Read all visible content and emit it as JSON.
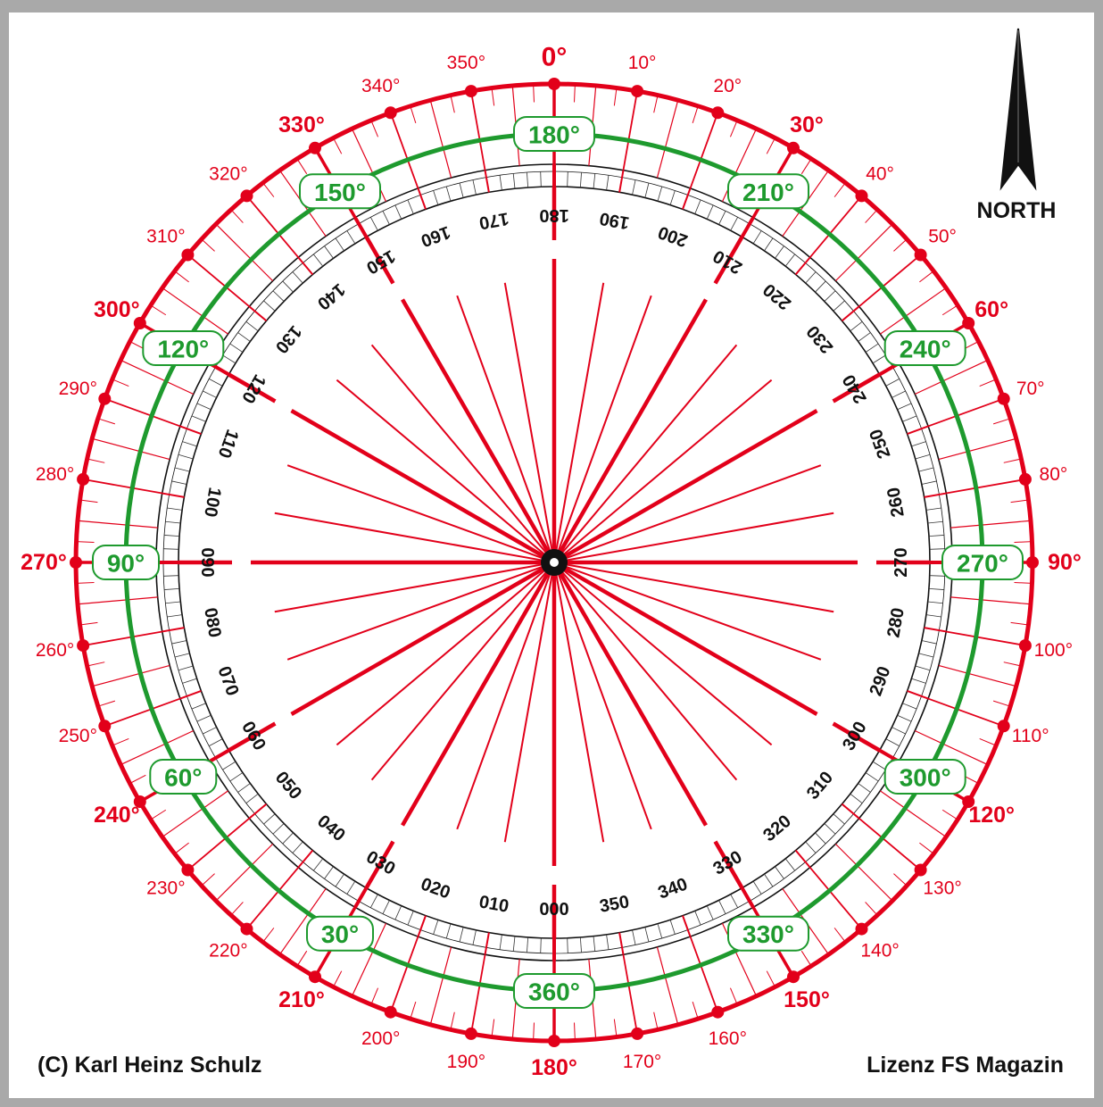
{
  "colors": {
    "red": "#e2001a",
    "green": "#1e9a2e",
    "black": "#111111",
    "frame": "#a9a9a9"
  },
  "north": {
    "label": "NORTH",
    "icon": "north-arrow-icon"
  },
  "footer": {
    "copyright": "(C) Karl Heinz Schulz",
    "license": "Lizenz FS Magazin"
  },
  "outer_ring": {
    "major_labels": [
      "0°",
      "30°",
      "60°",
      "90°",
      "120°",
      "150°",
      "180°",
      "210°",
      "240°",
      "270°",
      "300°",
      "330°"
    ],
    "minor_labels": [
      "10°",
      "20°",
      "40°",
      "50°",
      "70°",
      "80°",
      "100°",
      "110°",
      "130°",
      "140°",
      "160°",
      "170°",
      "190°",
      "200°",
      "220°",
      "230°",
      "250°",
      "260°",
      "280°",
      "290°",
      "310°",
      "320°",
      "340°",
      "350°"
    ]
  },
  "green_ring": {
    "labels": [
      "180°",
      "210°",
      "240°",
      "270°",
      "300°",
      "330°",
      "360°",
      "30°",
      "60°",
      "90°",
      "120°",
      "150°"
    ]
  },
  "inner_ring": {
    "labels": [
      "180",
      "190",
      "200",
      "210",
      "220",
      "230",
      "240",
      "250",
      "260",
      "270",
      "280",
      "290",
      "300",
      "310",
      "320",
      "330",
      "340",
      "350",
      "000",
      "010",
      "020",
      "030",
      "040",
      "050",
      "060",
      "070",
      "080",
      "090",
      "100",
      "110",
      "120",
      "130",
      "140",
      "150",
      "160",
      "170"
    ]
  }
}
